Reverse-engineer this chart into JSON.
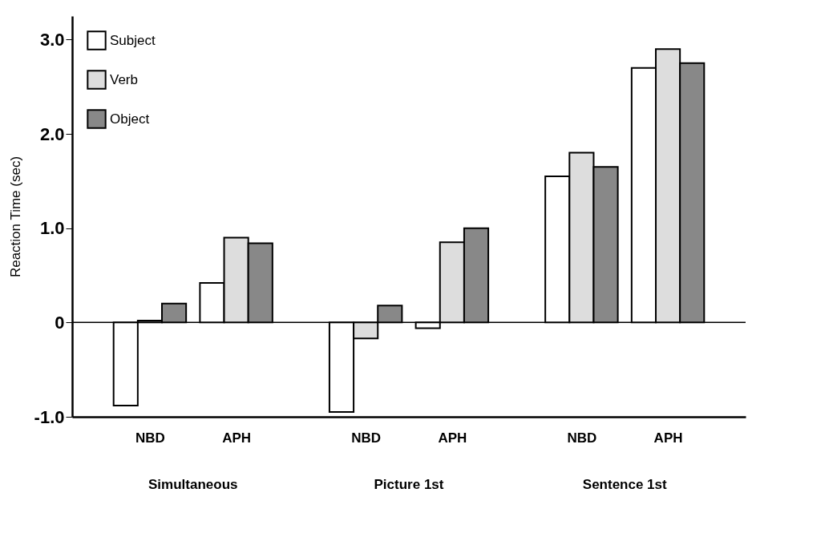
{
  "chart_data": {
    "type": "bar",
    "ylabel": "Reaction Time (sec)",
    "categories": [
      "NBD",
      "APH",
      "NBD",
      "APH",
      "NBD",
      "APH"
    ],
    "annotations": [
      "Simultaneous",
      "Picture 1st",
      "Sentence 1st"
    ],
    "series": [
      {
        "name": "Subject",
        "color": "#ffffff",
        "values": [
          -0.88,
          0.42,
          -0.95,
          -0.06,
          1.55,
          2.7
        ]
      },
      {
        "name": "Verb",
        "color": "#dddddd",
        "values": [
          0.02,
          0.9,
          -0.17,
          0.85,
          1.8,
          2.9
        ]
      },
      {
        "name": "Object",
        "color": "#888888",
        "values": [
          0.2,
          0.84,
          0.18,
          1.0,
          1.65,
          2.75
        ]
      }
    ],
    "ylim": [
      -1,
      3.25
    ],
    "yticks": [
      {
        "value": -1,
        "label": "-1.0"
      },
      0,
      {
        "value": 1,
        "label": "1.0"
      },
      {
        "value": 2,
        "label": "2.0"
      },
      {
        "value": 3,
        "label": "3.0"
      }
    ],
    "ref_lines": [
      {
        "axis": "y",
        "value": 0
      }
    ],
    "grid": false,
    "legend": "top left"
  }
}
